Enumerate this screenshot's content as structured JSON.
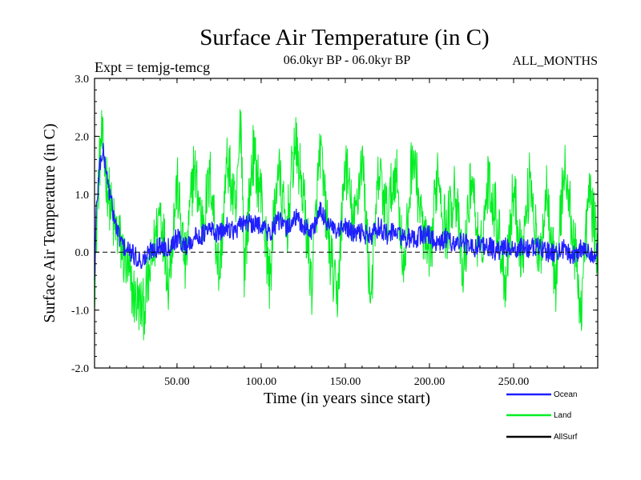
{
  "header": {
    "title": "Surface Air Temperature (in C)",
    "expt": "Expt = temjg-temcg",
    "period": "06.0kyr BP - 06.0kyr BP",
    "months": "ALL_MONTHS"
  },
  "chart_data": {
    "type": "line",
    "title": "Surface Air Temperature (in C)",
    "xlabel": "Time (in years since start)",
    "ylabel": "Surface Air Temperature (in C)",
    "xlim": [
      1,
      300
    ],
    "ylim": [
      -2.0,
      3.0
    ],
    "xticks": [
      50,
      100,
      150,
      200,
      250
    ],
    "xtick_labels": [
      "50.00",
      "100.00",
      "150.00",
      "200.00",
      "250.00"
    ],
    "yticks": [
      -2.0,
      -1.0,
      0.0,
      1.0,
      2.0,
      3.0
    ],
    "ytick_labels": [
      "-2.0",
      "-1.0",
      "0.0",
      "1.0",
      "2.0",
      "3.0"
    ],
    "zero_line": true,
    "legend_position": "bottom-right",
    "series": [
      {
        "name": "Land",
        "color": "#00ee22",
        "x": [
          1,
          3,
          5,
          8,
          12,
          16,
          20,
          25,
          30,
          35,
          40,
          45,
          50,
          55,
          60,
          65,
          70,
          75,
          80,
          85,
          88,
          90,
          95,
          100,
          105,
          110,
          115,
          120,
          125,
          130,
          135,
          140,
          145,
          150,
          155,
          160,
          165,
          170,
          175,
          180,
          185,
          190,
          195,
          200,
          205,
          210,
          215,
          220,
          225,
          230,
          235,
          240,
          245,
          250,
          255,
          260,
          265,
          270,
          275,
          280,
          285,
          290,
          295,
          300
        ],
        "values": [
          -0.5,
          1.0,
          2.0,
          1.3,
          0.5,
          0.2,
          -0.3,
          -0.8,
          -1.0,
          -0.2,
          0.8,
          -0.5,
          1.2,
          -0.3,
          1.5,
          0.5,
          1.3,
          -0.4,
          1.6,
          0.6,
          2.4,
          -0.3,
          1.7,
          1.0,
          -0.5,
          1.5,
          0.3,
          1.9,
          1.0,
          -0.6,
          1.8,
          0.2,
          -0.9,
          1.6,
          0.4,
          1.7,
          -0.8,
          1.4,
          0.6,
          1.5,
          -0.4,
          1.8,
          0.6,
          -0.3,
          1.5,
          0.3,
          1.2,
          -0.5,
          1.4,
          -0.2,
          1.3,
          0.6,
          -0.5,
          1.1,
          -0.1,
          1.4,
          -0.3,
          1.2,
          -0.6,
          1.5,
          0.4,
          -1.0,
          1.1,
          0.0
        ]
      },
      {
        "name": "Ocean",
        "color": "#1f1fff",
        "x": [
          1,
          2,
          4,
          6,
          8,
          10,
          14,
          18,
          22,
          26,
          30,
          35,
          40,
          45,
          50,
          55,
          60,
          65,
          70,
          75,
          80,
          85,
          90,
          95,
          100,
          105,
          110,
          115,
          120,
          125,
          130,
          135,
          140,
          145,
          150,
          155,
          160,
          165,
          170,
          175,
          180,
          185,
          190,
          195,
          200,
          205,
          210,
          215,
          220,
          225,
          230,
          235,
          240,
          245,
          250,
          255,
          260,
          265,
          270,
          275,
          280,
          285,
          290,
          295,
          300
        ],
        "values": [
          -0.5,
          0.7,
          1.5,
          1.75,
          1.4,
          1.0,
          0.4,
          0.1,
          0.0,
          -0.1,
          -0.15,
          0.05,
          0.1,
          0.1,
          0.25,
          0.1,
          0.25,
          0.3,
          0.4,
          0.3,
          0.45,
          0.35,
          0.55,
          0.45,
          0.5,
          0.3,
          0.55,
          0.4,
          0.6,
          0.45,
          0.35,
          0.7,
          0.5,
          0.3,
          0.45,
          0.3,
          0.35,
          0.25,
          0.45,
          0.3,
          0.35,
          0.25,
          0.2,
          0.3,
          0.3,
          0.1,
          0.25,
          0.15,
          0.2,
          0.05,
          0.15,
          0.1,
          0.0,
          0.1,
          0.0,
          0.1,
          0.05,
          0.1,
          0.0,
          0.0,
          0.05,
          -0.05,
          0.05,
          0.0,
          0.0
        ]
      },
      {
        "name": "AllSurf",
        "color": "#000000",
        "x": [],
        "values": []
      }
    ]
  }
}
